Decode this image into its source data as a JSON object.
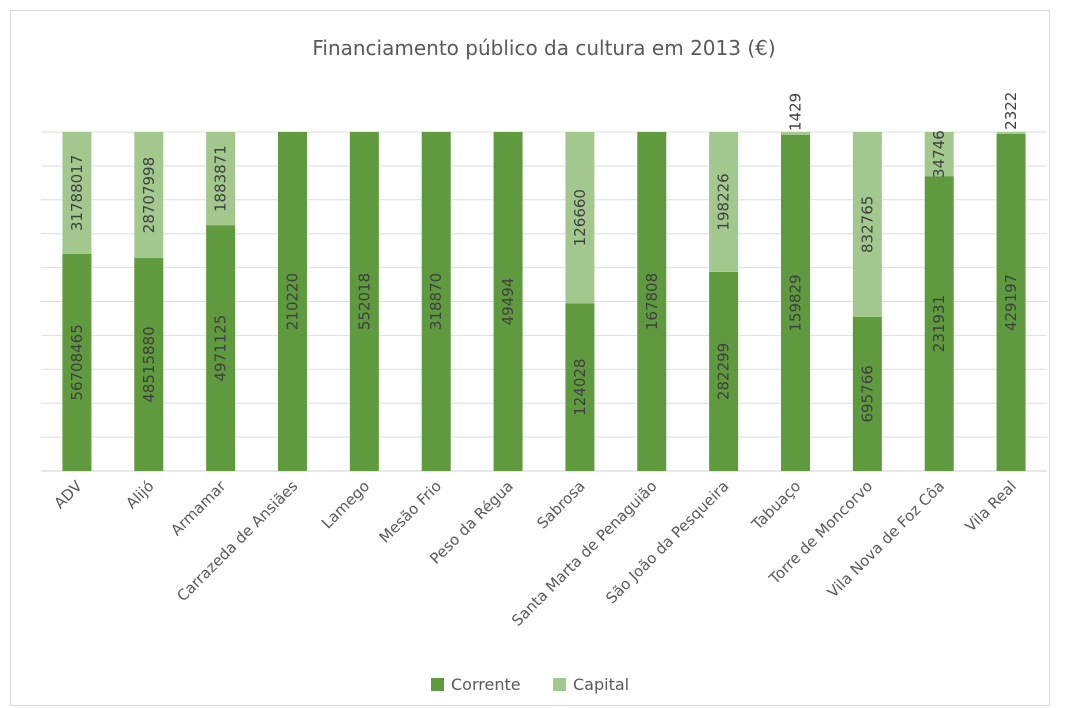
{
  "chart_data": {
    "type": "bar",
    "stacked": true,
    "normalized": true,
    "title": "Financiamento público da cultura em 2013 (€)",
    "xlabel": "",
    "ylabel": "",
    "ylim": [
      0,
      1
    ],
    "grid": true,
    "legend_position": "bottom",
    "categories": [
      "ADV",
      "Alijó",
      "Armamar",
      "Carrazeda de Ansiães",
      "Lamego",
      "Mesão Frio",
      "Peso da Régua",
      "Sabrosa",
      "Santa Marta de Penaguião",
      "São João da Pesqueira",
      "Tabuaço",
      "Torre de Moncorvo",
      "Vila Nova de Foz Côa",
      "Vila Real"
    ],
    "series": [
      {
        "name": "Corrente",
        "color": "#5f9a3e",
        "values": [
          56708465,
          48515880,
          4971125,
          210220,
          552018,
          318870,
          49494,
          124028,
          167808,
          282299,
          159829,
          695766,
          231931,
          429197
        ]
      },
      {
        "name": "Capital",
        "color": "#a3c88e",
        "values": [
          31788017,
          28707998,
          1883871,
          null,
          null,
          null,
          null,
          126660,
          null,
          198226,
          1429,
          832765,
          34746,
          2322
        ]
      }
    ]
  }
}
